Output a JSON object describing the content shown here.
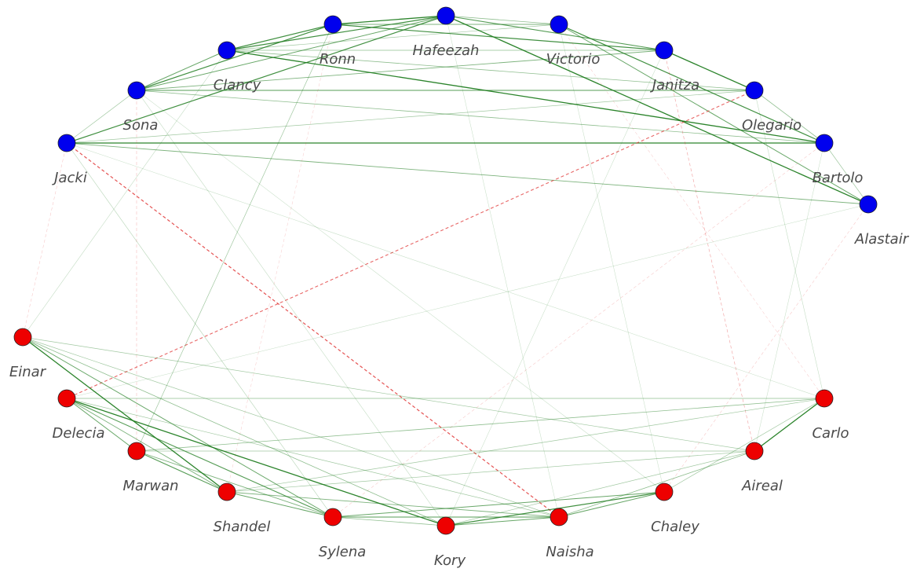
{
  "colors": {
    "group_blue": "#0000ee",
    "group_red": "#ee0000",
    "edge_positive": "#1a7a1a",
    "edge_negative": "#e03030",
    "label": "#4a4a4a"
  },
  "nodes": [
    {
      "id": "Hafeezah",
      "group": "blue"
    },
    {
      "id": "Victorio",
      "group": "blue"
    },
    {
      "id": "Janitza",
      "group": "blue"
    },
    {
      "id": "Olegario",
      "group": "blue"
    },
    {
      "id": "Bartolo",
      "group": "blue"
    },
    {
      "id": "Alastair",
      "group": "blue"
    },
    {
      "id": "Ronn",
      "group": "blue"
    },
    {
      "id": "Clancy",
      "group": "blue"
    },
    {
      "id": "Sona",
      "group": "blue"
    },
    {
      "id": "Jacki",
      "group": "blue"
    },
    {
      "id": "Einar",
      "group": "red"
    },
    {
      "id": "Delecia",
      "group": "red"
    },
    {
      "id": "Marwan",
      "group": "red"
    },
    {
      "id": "Shandel",
      "group": "red"
    },
    {
      "id": "Sylena",
      "group": "red"
    },
    {
      "id": "Kory",
      "group": "red"
    },
    {
      "id": "Naisha",
      "group": "red"
    },
    {
      "id": "Chaley",
      "group": "red"
    },
    {
      "id": "Aireal",
      "group": "red"
    },
    {
      "id": "Carlo",
      "group": "red"
    }
  ],
  "edges": [
    {
      "source": "Ronn",
      "target": "Hafeezah",
      "sign": "positive",
      "weight": 0.9
    },
    {
      "source": "Ronn",
      "target": "Clancy",
      "sign": "positive",
      "weight": 0.8
    },
    {
      "source": "Ronn",
      "target": "Sona",
      "sign": "positive",
      "weight": 0.8
    },
    {
      "source": "Ronn",
      "target": "Janitza",
      "sign": "positive",
      "weight": 0.8
    },
    {
      "source": "Ronn",
      "target": "Victorio",
      "sign": "positive",
      "weight": 0.5
    },
    {
      "source": "Hafeezah",
      "target": "Clancy",
      "sign": "positive",
      "weight": 0.8
    },
    {
      "source": "Hafeezah",
      "target": "Sona",
      "sign": "positive",
      "weight": 0.6
    },
    {
      "source": "Hafeezah",
      "target": "Jacki",
      "sign": "positive",
      "weight": 0.8
    },
    {
      "source": "Hafeezah",
      "target": "Janitza",
      "sign": "positive",
      "weight": 0.7
    },
    {
      "source": "Hafeezah",
      "target": "Alastair",
      "sign": "positive",
      "weight": 0.9
    },
    {
      "source": "Hafeezah",
      "target": "Victorio",
      "sign": "positive",
      "weight": 0.4
    },
    {
      "source": "Victorio",
      "target": "Bartolo",
      "sign": "positive",
      "weight": 0.8
    },
    {
      "source": "Victorio",
      "target": "Alastair",
      "sign": "positive",
      "weight": 0.6
    },
    {
      "source": "Victorio",
      "target": "Clancy",
      "sign": "positive",
      "weight": 0.3
    },
    {
      "source": "Janitza",
      "target": "Olegario",
      "sign": "positive",
      "weight": 0.9
    },
    {
      "source": "Janitza",
      "target": "Sona",
      "sign": "positive",
      "weight": 0.5
    },
    {
      "source": "Janitza",
      "target": "Clancy",
      "sign": "positive",
      "weight": 0.4
    },
    {
      "source": "Clancy",
      "target": "Sona",
      "sign": "positive",
      "weight": 0.6
    },
    {
      "source": "Clancy",
      "target": "Bartolo",
      "sign": "positive",
      "weight": 0.9
    },
    {
      "source": "Clancy",
      "target": "Olegario",
      "sign": "positive",
      "weight": 0.4
    },
    {
      "source": "Sona",
      "target": "Olegario",
      "sign": "positive",
      "weight": 0.7
    },
    {
      "source": "Sona",
      "target": "Bartolo",
      "sign": "positive",
      "weight": 0.4
    },
    {
      "source": "Sona",
      "target": "Jacki",
      "sign": "positive",
      "weight": 0.3
    },
    {
      "source": "Jacki",
      "target": "Bartolo",
      "sign": "positive",
      "weight": 0.9
    },
    {
      "source": "Jacki",
      "target": "Alastair",
      "sign": "positive",
      "weight": 0.5
    },
    {
      "source": "Jacki",
      "target": "Olegario",
      "sign": "positive",
      "weight": 0.3
    },
    {
      "source": "Olegario",
      "target": "Bartolo",
      "sign": "positive",
      "weight": 0.4
    },
    {
      "source": "Bartolo",
      "target": "Alastair",
      "sign": "positive",
      "weight": 0.3
    },
    {
      "source": "Jacki",
      "target": "Naisha",
      "sign": "negative",
      "weight": 0.8
    },
    {
      "source": "Olegario",
      "target": "Delecia",
      "sign": "negative",
      "weight": 0.7
    },
    {
      "source": "Janitza",
      "target": "Aireal",
      "sign": "negative",
      "weight": 0.3
    },
    {
      "source": "Sona",
      "target": "Marwan",
      "sign": "negative",
      "weight": 0.2
    },
    {
      "source": "Jacki",
      "target": "Einar",
      "sign": "negative",
      "weight": 0.15
    },
    {
      "source": "Bartolo",
      "target": "Sylena",
      "sign": "negative",
      "weight": 0.15
    },
    {
      "source": "Alastair",
      "target": "Chaley",
      "sign": "negative",
      "weight": 0.15
    },
    {
      "source": "Victorio",
      "target": "Carlo",
      "sign": "negative",
      "weight": 0.12
    },
    {
      "source": "Ronn",
      "target": "Shandel",
      "sign": "negative",
      "weight": 0.12
    },
    {
      "source": "Einar",
      "target": "Shandel",
      "sign": "positive",
      "weight": 0.9
    },
    {
      "source": "Einar",
      "target": "Sylena",
      "sign": "positive",
      "weight": 0.6
    },
    {
      "source": "Einar",
      "target": "Kory",
      "sign": "positive",
      "weight": 0.4
    },
    {
      "source": "Einar",
      "target": "Aireal",
      "sign": "positive",
      "weight": 0.3
    },
    {
      "source": "Einar",
      "target": "Naisha",
      "sign": "positive",
      "weight": 0.3
    },
    {
      "source": "Delecia",
      "target": "Kory",
      "sign": "positive",
      "weight": 0.9
    },
    {
      "source": "Delecia",
      "target": "Sylena",
      "sign": "positive",
      "weight": 0.7
    },
    {
      "source": "Delecia",
      "target": "Marwan",
      "sign": "positive",
      "weight": 0.6
    },
    {
      "source": "Delecia",
      "target": "Carlo",
      "sign": "positive",
      "weight": 0.4
    },
    {
      "source": "Delecia",
      "target": "Shandel",
      "sign": "positive",
      "weight": 0.5
    },
    {
      "source": "Delecia",
      "target": "Naisha",
      "sign": "positive",
      "weight": 0.3
    },
    {
      "source": "Marwan",
      "target": "Shandel",
      "sign": "positive",
      "weight": 0.7
    },
    {
      "source": "Marwan",
      "target": "Sylena",
      "sign": "positive",
      "weight": 0.5
    },
    {
      "source": "Marwan",
      "target": "Carlo",
      "sign": "positive",
      "weight": 0.4
    },
    {
      "source": "Marwan",
      "target": "Aireal",
      "sign": "positive",
      "weight": 0.3
    },
    {
      "source": "Shandel",
      "target": "Sylena",
      "sign": "positive",
      "weight": 0.6
    },
    {
      "source": "Shandel",
      "target": "Naisha",
      "sign": "positive",
      "weight": 0.5
    },
    {
      "source": "Shandel",
      "target": "Aireal",
      "sign": "positive",
      "weight": 0.3
    },
    {
      "source": "Sylena",
      "target": "Naisha",
      "sign": "positive",
      "weight": 0.7
    },
    {
      "source": "Sylena",
      "target": "Chaley",
      "sign": "positive",
      "weight": 0.6
    },
    {
      "source": "Sylena",
      "target": "Kory",
      "sign": "positive",
      "weight": 0.4
    },
    {
      "source": "Kory",
      "target": "Chaley",
      "sign": "positive",
      "weight": 0.8
    },
    {
      "source": "Kory",
      "target": "Naisha",
      "sign": "positive",
      "weight": 0.6
    },
    {
      "source": "Kory",
      "target": "Aireal",
      "sign": "positive",
      "weight": 0.3
    },
    {
      "source": "Naisha",
      "target": "Chaley",
      "sign": "positive",
      "weight": 0.6
    },
    {
      "source": "Naisha",
      "target": "Aireal",
      "sign": "positive",
      "weight": 0.4
    },
    {
      "source": "Aireal",
      "target": "Carlo",
      "sign": "positive",
      "weight": 0.9
    },
    {
      "source": "Chaley",
      "target": "Carlo",
      "sign": "positive",
      "weight": 0.3
    },
    {
      "source": "Shandel",
      "target": "Carlo",
      "sign": "positive",
      "weight": 0.3
    },
    {
      "source": "Jacki",
      "target": "Sylena",
      "sign": "positive",
      "weight": 0.2
    },
    {
      "source": "Sona",
      "target": "Kory",
      "sign": "positive",
      "weight": 0.15
    },
    {
      "source": "Clancy",
      "target": "Einar",
      "sign": "positive",
      "weight": 0.15
    },
    {
      "source": "Ronn",
      "target": "Marwan",
      "sign": "positive",
      "weight": 0.3
    },
    {
      "source": "Hafeezah",
      "target": "Naisha",
      "sign": "positive",
      "weight": 0.12
    },
    {
      "source": "Victorio",
      "target": "Chaley",
      "sign": "positive",
      "weight": 0.12
    },
    {
      "source": "Janitza",
      "target": "Kory",
      "sign": "positive",
      "weight": 0.12
    },
    {
      "source": "Olegario",
      "target": "Carlo",
      "sign": "positive",
      "weight": 0.15
    },
    {
      "source": "Bartolo",
      "target": "Aireal",
      "sign": "positive",
      "weight": 0.12
    },
    {
      "source": "Alastair",
      "target": "Delecia",
      "sign": "positive",
      "weight": 0.12
    },
    {
      "source": "Jacki",
      "target": "Carlo",
      "sign": "positive",
      "weight": 0.12
    },
    {
      "source": "Sona",
      "target": "Chaley",
      "sign": "positive",
      "weight": 0.12
    }
  ]
}
